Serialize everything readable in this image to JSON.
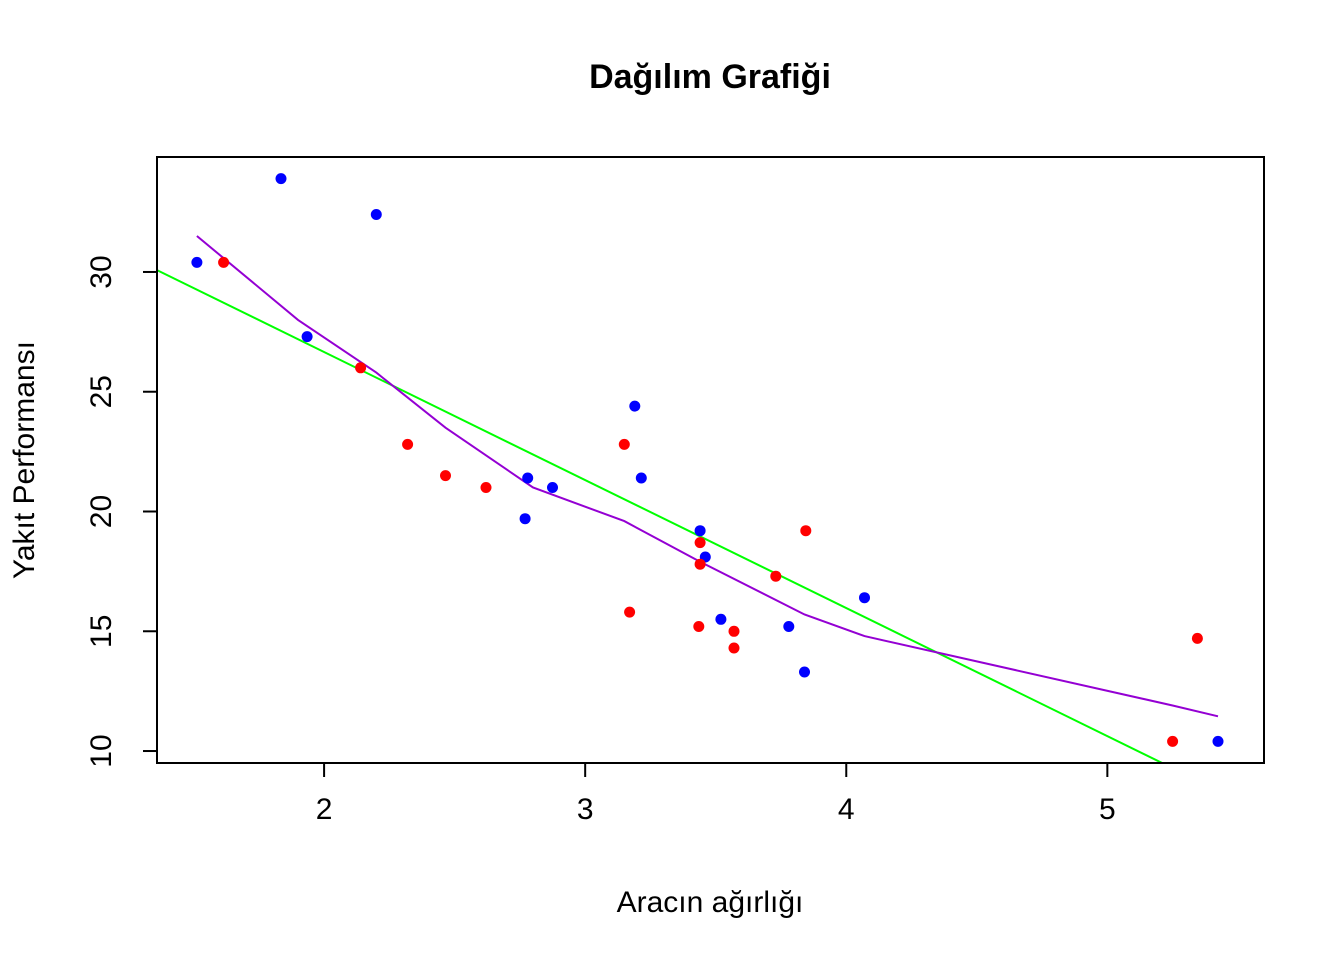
{
  "chart_data": {
    "type": "scatter",
    "title": "Dağılım Grafiği",
    "xlabel": "Aracın ağırlığı",
    "ylabel": "Yakıt Performansı",
    "xlim": [
      1.36,
      5.6
    ],
    "ylim": [
      9.5,
      34.8
    ],
    "xticks": [
      2,
      3,
      4,
      5
    ],
    "yticks": [
      10,
      15,
      20,
      25,
      30
    ],
    "grid": false,
    "colors": {
      "group_blue": "#0000ff",
      "group_red": "#ff0000",
      "fit_line": "#00ff00",
      "smooth_line": "#9400d3"
    },
    "series": [
      {
        "color": "#0000ff",
        "points": [
          [
            1.513,
            30.4
          ],
          [
            1.835,
            33.9
          ],
          [
            1.935,
            27.3
          ],
          [
            2.2,
            32.4
          ],
          [
            2.77,
            19.7
          ],
          [
            2.78,
            21.4
          ],
          [
            2.875,
            21.0
          ],
          [
            3.19,
            24.4
          ],
          [
            3.215,
            21.4
          ],
          [
            3.44,
            19.2
          ],
          [
            3.46,
            18.1
          ],
          [
            3.52,
            15.5
          ],
          [
            3.78,
            15.2
          ],
          [
            3.84,
            13.3
          ],
          [
            4.07,
            16.4
          ],
          [
            5.424,
            10.4
          ]
        ]
      },
      {
        "color": "#ff0000",
        "points": [
          [
            1.615,
            30.4
          ],
          [
            2.14,
            26.0
          ],
          [
            2.32,
            22.8
          ],
          [
            2.465,
            21.5
          ],
          [
            2.62,
            21.0
          ],
          [
            3.15,
            22.8
          ],
          [
            3.17,
            15.8
          ],
          [
            3.435,
            15.2
          ],
          [
            3.44,
            18.7
          ],
          [
            3.44,
            17.8
          ],
          [
            3.57,
            15.0
          ],
          [
            3.57,
            14.3
          ],
          [
            3.73,
            17.3
          ],
          [
            3.845,
            19.2
          ],
          [
            5.25,
            10.4
          ],
          [
            5.345,
            14.7
          ]
        ]
      }
    ],
    "lines": [
      {
        "type": "linear-fit",
        "color": "#00ff00",
        "points": [
          [
            1.36,
            30.08
          ],
          [
            5.21,
            9.5
          ]
        ]
      },
      {
        "type": "smooth",
        "color": "#9400d3",
        "points": [
          [
            1.513,
            31.5
          ],
          [
            1.9,
            28.0
          ],
          [
            2.2,
            25.8
          ],
          [
            2.465,
            23.5
          ],
          [
            2.8,
            21.0
          ],
          [
            3.15,
            19.6
          ],
          [
            3.44,
            17.9
          ],
          [
            3.84,
            15.7
          ],
          [
            4.07,
            14.8
          ],
          [
            5.25,
            11.9
          ],
          [
            5.424,
            11.45
          ]
        ]
      }
    ]
  }
}
